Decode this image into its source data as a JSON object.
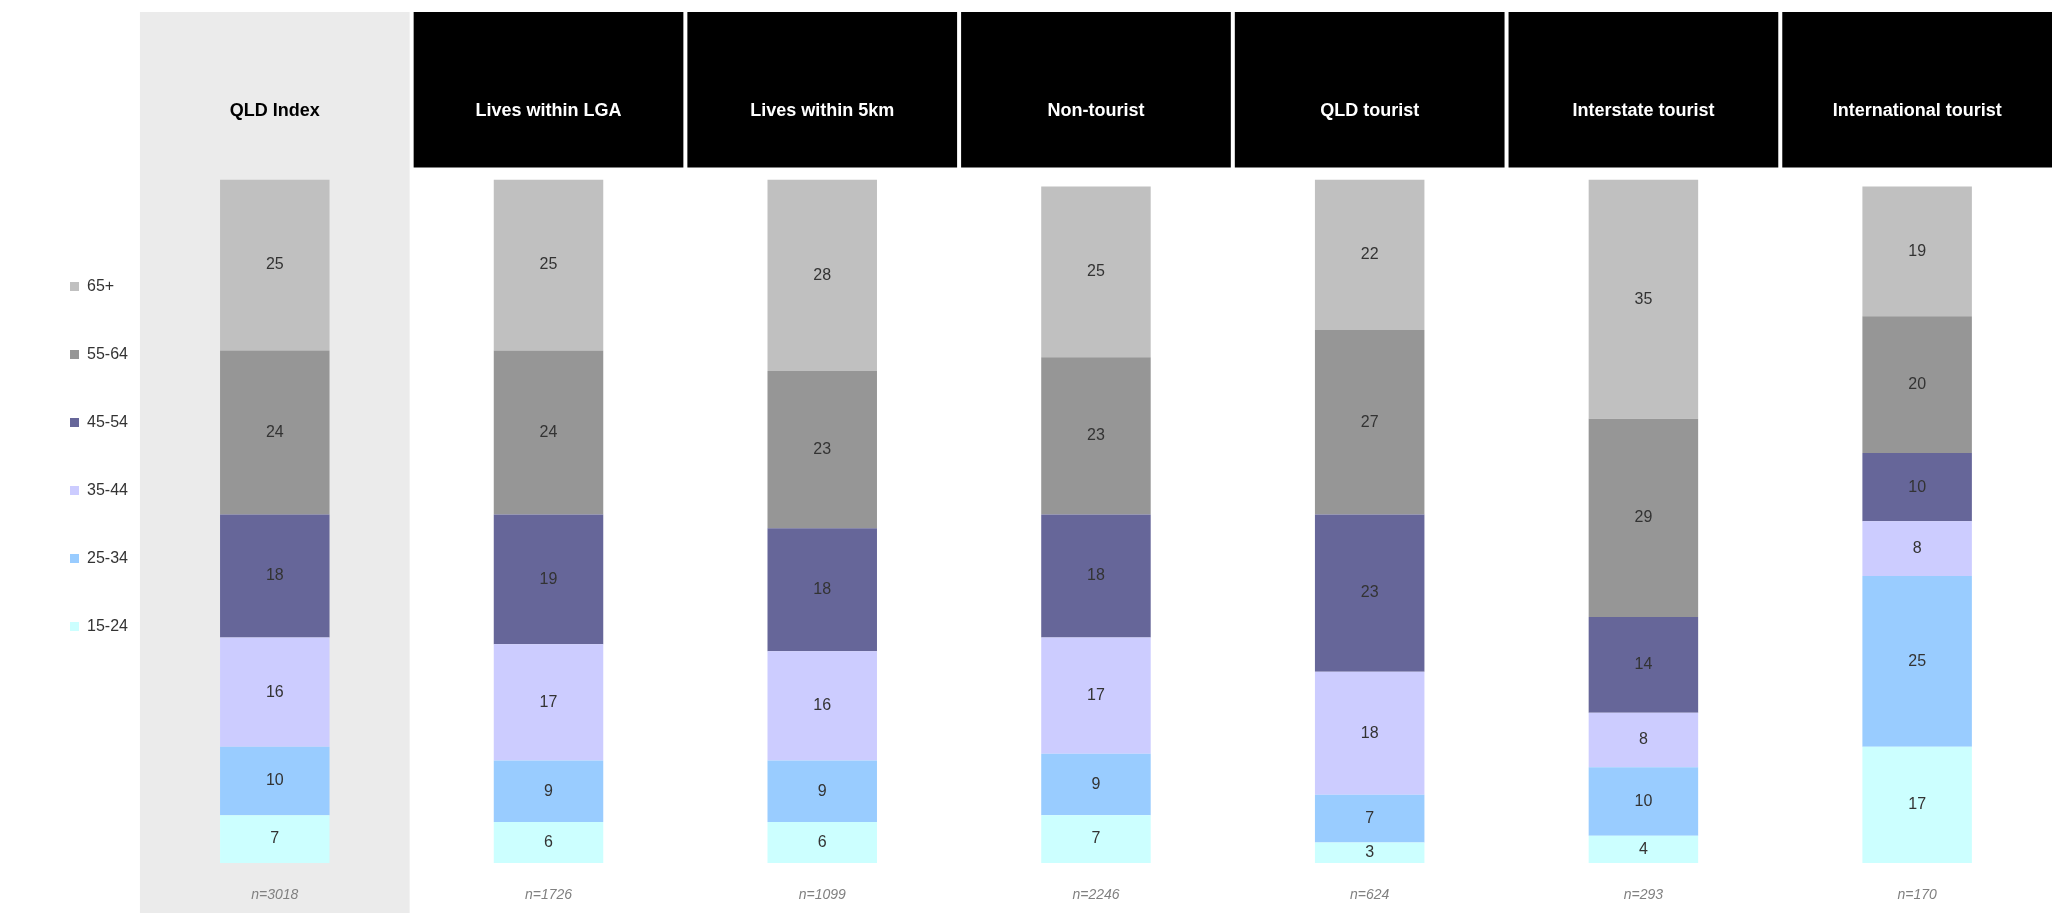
{
  "chart_data": {
    "type": "bar",
    "stacked": true,
    "data_labels": true,
    "legend": "left",
    "grid": false,
    "categories": [
      "QLD Index",
      "Lives within LGA",
      "Lives within 5km",
      "Non-tourist",
      "QLD tourist",
      "Interstate tourist",
      "International tourist"
    ],
    "series": [
      {
        "name": "15-24",
        "color": "#ccffff",
        "values": [
          7,
          6,
          6,
          7,
          3,
          4,
          17
        ]
      },
      {
        "name": "25-34",
        "color": "#99ccff",
        "values": [
          10,
          9,
          9,
          9,
          7,
          10,
          25
        ]
      },
      {
        "name": "35-44",
        "color": "#ccccff",
        "values": [
          16,
          17,
          16,
          17,
          18,
          8,
          8
        ]
      },
      {
        "name": "45-54",
        "color": "#666699",
        "values": [
          18,
          19,
          18,
          18,
          23,
          14,
          10
        ]
      },
      {
        "name": "55-64",
        "color": "#969696",
        "values": [
          24,
          24,
          23,
          23,
          27,
          29,
          20
        ]
      },
      {
        "name": "65+",
        "color": "#c0c0c0",
        "values": [
          25,
          25,
          28,
          25,
          22,
          35,
          19
        ]
      }
    ],
    "bands": [
      {
        "axis": "x",
        "from": "QLD Index",
        "to": "QLD Index",
        "color": "#ebebeb"
      }
    ],
    "annotations": [
      "n=3018",
      "n=1726",
      "n=1099",
      "n=2246",
      "n=624",
      "n=293",
      "n=170"
    ]
  }
}
